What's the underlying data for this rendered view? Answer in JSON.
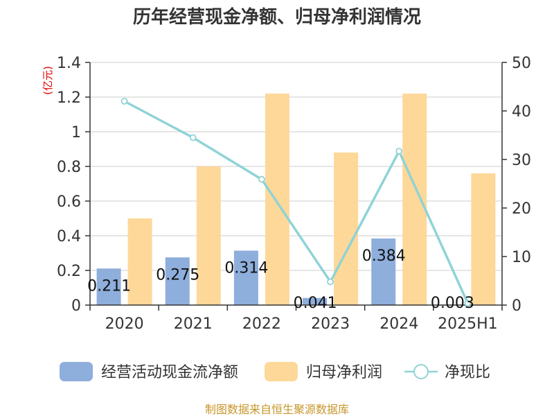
{
  "title": "历年经营现金净额、归母净利润情况",
  "left_unit": "(亿元)",
  "source": "制图数据来自恒生聚源数据库",
  "colors": {
    "cash": "#8eaedc",
    "profit": "#fed899",
    "ratio": "#8fd3d6",
    "grid": "#cccccc",
    "axis": "#333333",
    "unit": "#e60000",
    "source": "#c8962a"
  },
  "legend": [
    {
      "label": "经营活动现金流净额",
      "icon": "bar-swatch"
    },
    {
      "label": "归母净利润",
      "icon": "bar-swatch"
    },
    {
      "label": "净现比",
      "icon": "line-circle-marker"
    }
  ],
  "chart_data": {
    "type": "bar",
    "categories": [
      "2020",
      "2021",
      "2022",
      "2023",
      "2024",
      "2025H1"
    ],
    "series": [
      {
        "name": "经营活动现金流净额",
        "type": "bar",
        "axis": "left",
        "values": [
          0.211,
          0.275,
          0.314,
          0.041,
          0.384,
          0.003
        ],
        "data_labels": [
          "0.211",
          "0.275",
          "0.314",
          "0.041",
          "0.384",
          "0.003"
        ]
      },
      {
        "name": "归母净利润",
        "type": "bar",
        "axis": "left",
        "values": [
          0.5,
          0.8,
          1.22,
          0.88,
          1.22,
          0.76
        ]
      },
      {
        "name": "净现比",
        "type": "line",
        "axis": "right",
        "values": [
          42.0,
          34.5,
          25.9,
          4.8,
          31.7,
          0.4
        ]
      }
    ],
    "y_left": {
      "min": 0,
      "max": 1.4,
      "ticks": [
        "0",
        "0.2",
        "0.4",
        "0.6",
        "0.8",
        "1",
        "1.2",
        "1.4"
      ]
    },
    "y_right": {
      "min": 0,
      "max": 50,
      "ticks": [
        "0",
        "10",
        "20",
        "30",
        "40",
        "50"
      ]
    },
    "grid": true,
    "legend_position": "bottom"
  }
}
